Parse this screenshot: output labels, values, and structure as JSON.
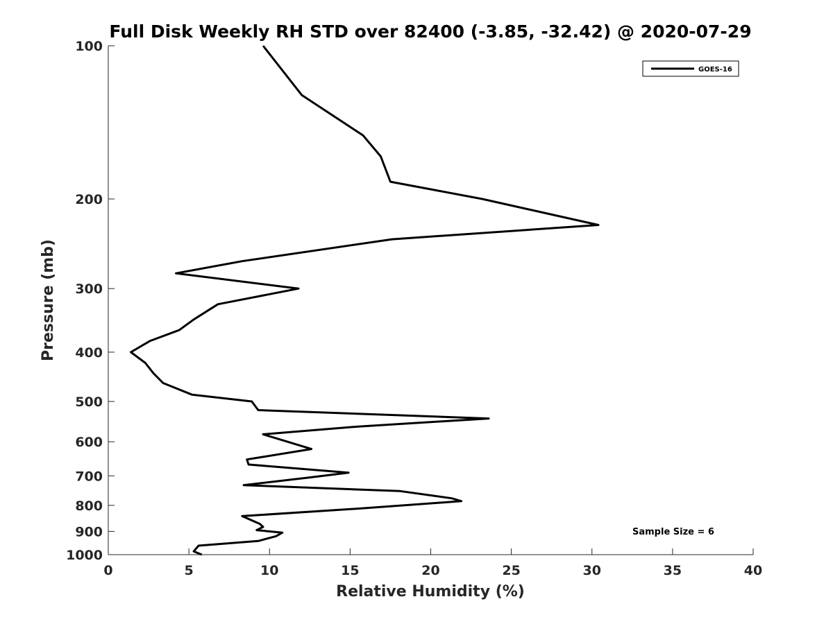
{
  "chart_data": {
    "type": "line",
    "title": "Full Disk Weekly RH STD over 82400 (-3.85, -32.42) @ 2020-07-29",
    "xlabel": "Relative Humidity (%)",
    "ylabel": "Pressure (mb)",
    "xlim": [
      0,
      40
    ],
    "ylim": [
      100,
      1000
    ],
    "y_scale": "log",
    "y_reversed": true,
    "x_ticks": [
      0,
      5,
      10,
      15,
      20,
      25,
      30,
      35,
      40
    ],
    "y_ticks": [
      100,
      200,
      300,
      400,
      500,
      600,
      700,
      800,
      900,
      1000
    ],
    "grid": false,
    "legend_position": "top-right",
    "annotation": "Sample Size = 6",
    "series": [
      {
        "name": "GOES-16",
        "color": "#000000",
        "points": [
          [
            9.6,
            100
          ],
          [
            12.0,
            125
          ],
          [
            15.8,
            150
          ],
          [
            16.9,
            165
          ],
          [
            17.5,
            185
          ],
          [
            23.2,
            200
          ],
          [
            30.4,
            225
          ],
          [
            17.6,
            240
          ],
          [
            8.3,
            265
          ],
          [
            4.2,
            280
          ],
          [
            11.8,
            300
          ],
          [
            6.8,
            322
          ],
          [
            5.3,
            345
          ],
          [
            4.4,
            362
          ],
          [
            2.6,
            380
          ],
          [
            1.4,
            400
          ],
          [
            2.3,
            420
          ],
          [
            2.8,
            440
          ],
          [
            3.4,
            460
          ],
          [
            5.2,
            485
          ],
          [
            8.9,
            500
          ],
          [
            9.3,
            520
          ],
          [
            23.6,
            540
          ],
          [
            15.5,
            560
          ],
          [
            9.6,
            580
          ],
          [
            12.6,
            620
          ],
          [
            8.6,
            650
          ],
          [
            8.7,
            665
          ],
          [
            14.9,
            690
          ],
          [
            12.5,
            705
          ],
          [
            8.4,
            730
          ],
          [
            18.1,
            750
          ],
          [
            21.3,
            775
          ],
          [
            21.9,
            785
          ],
          [
            16.0,
            810
          ],
          [
            8.3,
            840
          ],
          [
            9.4,
            870
          ],
          [
            9.6,
            882
          ],
          [
            9.2,
            895
          ],
          [
            10.8,
            905
          ],
          [
            10.4,
            920
          ],
          [
            9.3,
            940
          ],
          [
            5.6,
            960
          ],
          [
            5.3,
            985
          ],
          [
            5.8,
            1000
          ]
        ]
      }
    ]
  }
}
